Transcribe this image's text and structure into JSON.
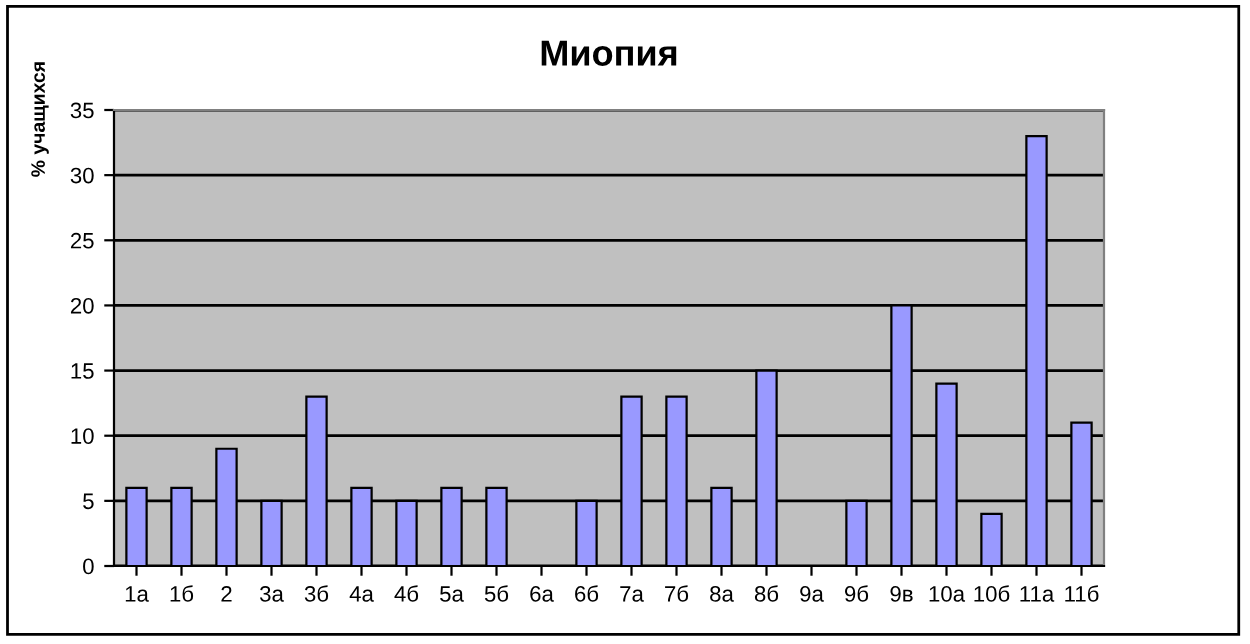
{
  "chart_data": {
    "type": "bar",
    "title": "Миопия",
    "ylabel": "% учащихся",
    "categories": [
      "1а",
      "1б",
      "2",
      "3а",
      "3б",
      "4а",
      "4б",
      "5а",
      "5б",
      "6а",
      "6б",
      "7а",
      "7б",
      "8а",
      "8б",
      "9а",
      "9б",
      "9в",
      "10а",
      "10б",
      "11а",
      "11б"
    ],
    "values": [
      6,
      6,
      9,
      5,
      13,
      6,
      5,
      6,
      6,
      null,
      5,
      13,
      13,
      6,
      15,
      null,
      5,
      20,
      14,
      4,
      33,
      11
    ],
    "color": "#9999ff",
    "ylim": [
      0,
      35
    ],
    "yticks": [
      0,
      5,
      10,
      15,
      20,
      25,
      30,
      35
    ],
    "grid": "y",
    "legend": false
  }
}
